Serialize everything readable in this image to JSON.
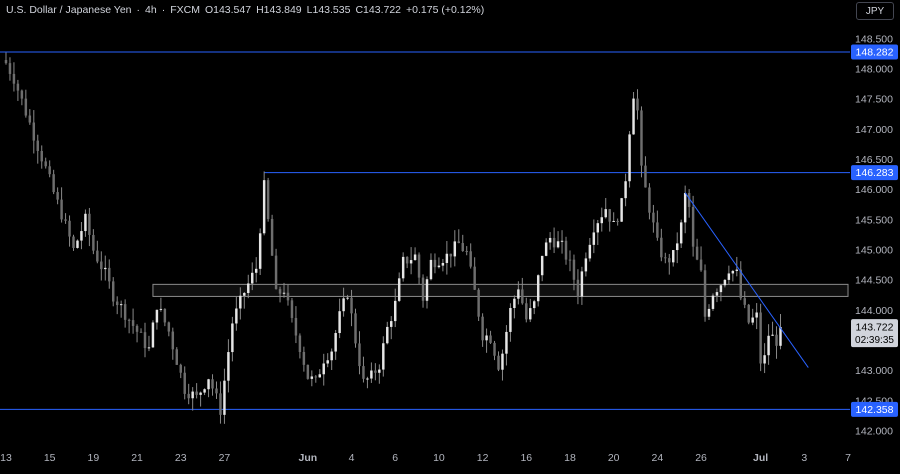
{
  "header": {
    "symbol": "U.S. Dollar / Japanese Yen",
    "interval": "4h",
    "exchange": "FXCM",
    "open_label": "O",
    "open": "143.547",
    "high_label": "H",
    "high": "143.849",
    "low_label": "L",
    "low": "143.535",
    "close_label": "C",
    "close": "143.722",
    "change": "+0.175 (+0.12%)"
  },
  "currency_button": "JPY",
  "colors": {
    "background": "#000000",
    "level_line": "#2962ff",
    "trendline": "#2962ff",
    "candle_body": "#d8d8d8",
    "candle_wick": "#8a8a8a",
    "level_badge": "#2962ff",
    "price_badge": "#d1d4dc",
    "zone_border": "#8c8c8c"
  },
  "chart_data": {
    "type": "candlestick",
    "title": "U.S. Dollar / Japanese Yen · 4h · FXCM",
    "y_axis": {
      "range": [
        141.75,
        148.78
      ],
      "ticks": [
        "142.000",
        "142.500",
        "143.000",
        "143.500",
        "144.000",
        "144.500",
        "145.000",
        "145.500",
        "146.000",
        "146.500",
        "147.000",
        "147.500",
        "148.000",
        "148.500"
      ]
    },
    "x_axis": {
      "ticks": [
        {
          "label": "13",
          "bar": 0
        },
        {
          "label": "15",
          "bar": 11
        },
        {
          "label": "19",
          "bar": 22
        },
        {
          "label": "21",
          "bar": 33
        },
        {
          "label": "23",
          "bar": 44
        },
        {
          "label": "27",
          "bar": 55
        },
        {
          "label": "Jun",
          "bar": 76,
          "bold": true
        },
        {
          "label": "4",
          "bar": 87
        },
        {
          "label": "6",
          "bar": 98
        },
        {
          "label": "10",
          "bar": 109
        },
        {
          "label": "12",
          "bar": 120
        },
        {
          "label": "16",
          "bar": 131
        },
        {
          "label": "18",
          "bar": 142
        },
        {
          "label": "20",
          "bar": 153
        },
        {
          "label": "24",
          "bar": 164
        },
        {
          "label": "26",
          "bar": 175
        },
        {
          "label": "Jul",
          "bar": 190,
          "bold": true
        },
        {
          "label": "3",
          "bar": 201
        },
        {
          "label": "7",
          "bar": 212
        }
      ]
    },
    "horizontal_levels": [
      {
        "name": "resistance-upper",
        "value": 148.282,
        "label": "148.282",
        "from_bar": 0
      },
      {
        "name": "resistance-mid",
        "value": 146.283,
        "label": "146.283",
        "from_bar": 65
      },
      {
        "name": "support-lower",
        "value": 142.358,
        "label": "142.358",
        "from_bar": 0
      }
    ],
    "zone": {
      "low": 144.23,
      "high": 144.43,
      "from_bar": 37,
      "to_bar": 212
    },
    "trendline": {
      "start": {
        "bar": 171,
        "price": 145.95
      },
      "end": {
        "bar": 202,
        "price": 143.05
      }
    },
    "last_price": {
      "value": 143.722,
      "label": "143.722",
      "countdown": "02:39:35"
    },
    "anchors": [
      [
        0,
        148.1
      ],
      [
        2,
        147.85
      ],
      [
        6,
        147.1
      ],
      [
        10,
        146.35
      ],
      [
        12,
        145.95
      ],
      [
        14,
        145.6
      ],
      [
        17,
        145.0
      ],
      [
        20,
        145.5
      ],
      [
        22,
        145.0
      ],
      [
        25,
        144.6
      ],
      [
        27,
        144.25
      ],
      [
        31,
        143.85
      ],
      [
        36,
        143.35
      ],
      [
        38,
        144.1
      ],
      [
        41,
        143.65
      ],
      [
        45,
        142.7
      ],
      [
        48,
        142.55
      ],
      [
        51,
        142.9
      ],
      [
        54,
        142.35
      ],
      [
        57,
        143.8
      ],
      [
        60,
        144.3
      ],
      [
        63,
        144.7
      ],
      [
        65,
        146.05
      ],
      [
        67,
        144.9
      ],
      [
        68,
        144.25
      ],
      [
        70,
        144.35
      ],
      [
        72,
        143.8
      ],
      [
        74,
        143.4
      ],
      [
        76,
        142.9
      ],
      [
        78,
        142.8
      ],
      [
        80,
        143.2
      ],
      [
        82,
        143.35
      ],
      [
        84,
        143.9
      ],
      [
        86,
        144.3
      ],
      [
        88,
        143.5
      ],
      [
        90,
        142.8
      ],
      [
        92,
        142.9
      ],
      [
        94,
        143.1
      ],
      [
        96,
        143.7
      ],
      [
        98,
        144.1
      ],
      [
        100,
        144.8
      ],
      [
        103,
        144.9
      ],
      [
        105,
        144.2
      ],
      [
        107,
        144.8
      ],
      [
        111,
        144.9
      ],
      [
        114,
        145.1
      ],
      [
        116,
        144.95
      ],
      [
        118,
        144.3
      ],
      [
        120,
        143.6
      ],
      [
        122,
        143.55
      ],
      [
        124,
        143.1
      ],
      [
        125,
        143.3
      ],
      [
        127,
        144.0
      ],
      [
        129,
        144.4
      ],
      [
        131,
        143.85
      ],
      [
        133,
        144.1
      ],
      [
        135,
        144.95
      ],
      [
        137,
        145.2
      ],
      [
        140,
        145.05
      ],
      [
        142,
        144.75
      ],
      [
        144,
        144.3
      ],
      [
        146,
        144.95
      ],
      [
        148,
        145.4
      ],
      [
        151,
        145.7
      ],
      [
        153,
        145.4
      ],
      [
        155,
        145.75
      ],
      [
        156,
        146.2
      ],
      [
        157,
        147.0
      ],
      [
        158,
        147.6
      ],
      [
        159,
        147.3
      ],
      [
        160,
        146.3
      ],
      [
        162,
        145.7
      ],
      [
        164,
        145.1
      ],
      [
        166,
        144.8
      ],
      [
        168,
        144.9
      ],
      [
        170,
        145.4
      ],
      [
        171,
        145.9
      ],
      [
        172,
        145.7
      ],
      [
        173,
        145.0
      ],
      [
        175,
        144.6
      ],
      [
        176,
        143.9
      ],
      [
        178,
        144.3
      ],
      [
        180,
        144.45
      ],
      [
        182,
        144.7
      ],
      [
        184,
        144.6
      ],
      [
        185,
        144.2
      ],
      [
        187,
        143.8
      ],
      [
        189,
        143.9
      ],
      [
        190,
        143.15
      ],
      [
        191,
        143.2
      ],
      [
        192,
        143.6
      ],
      [
        194,
        143.5
      ],
      [
        195,
        143.72
      ]
    ],
    "n_bars": 196,
    "bars_visible": 213,
    "seed": 7
  }
}
